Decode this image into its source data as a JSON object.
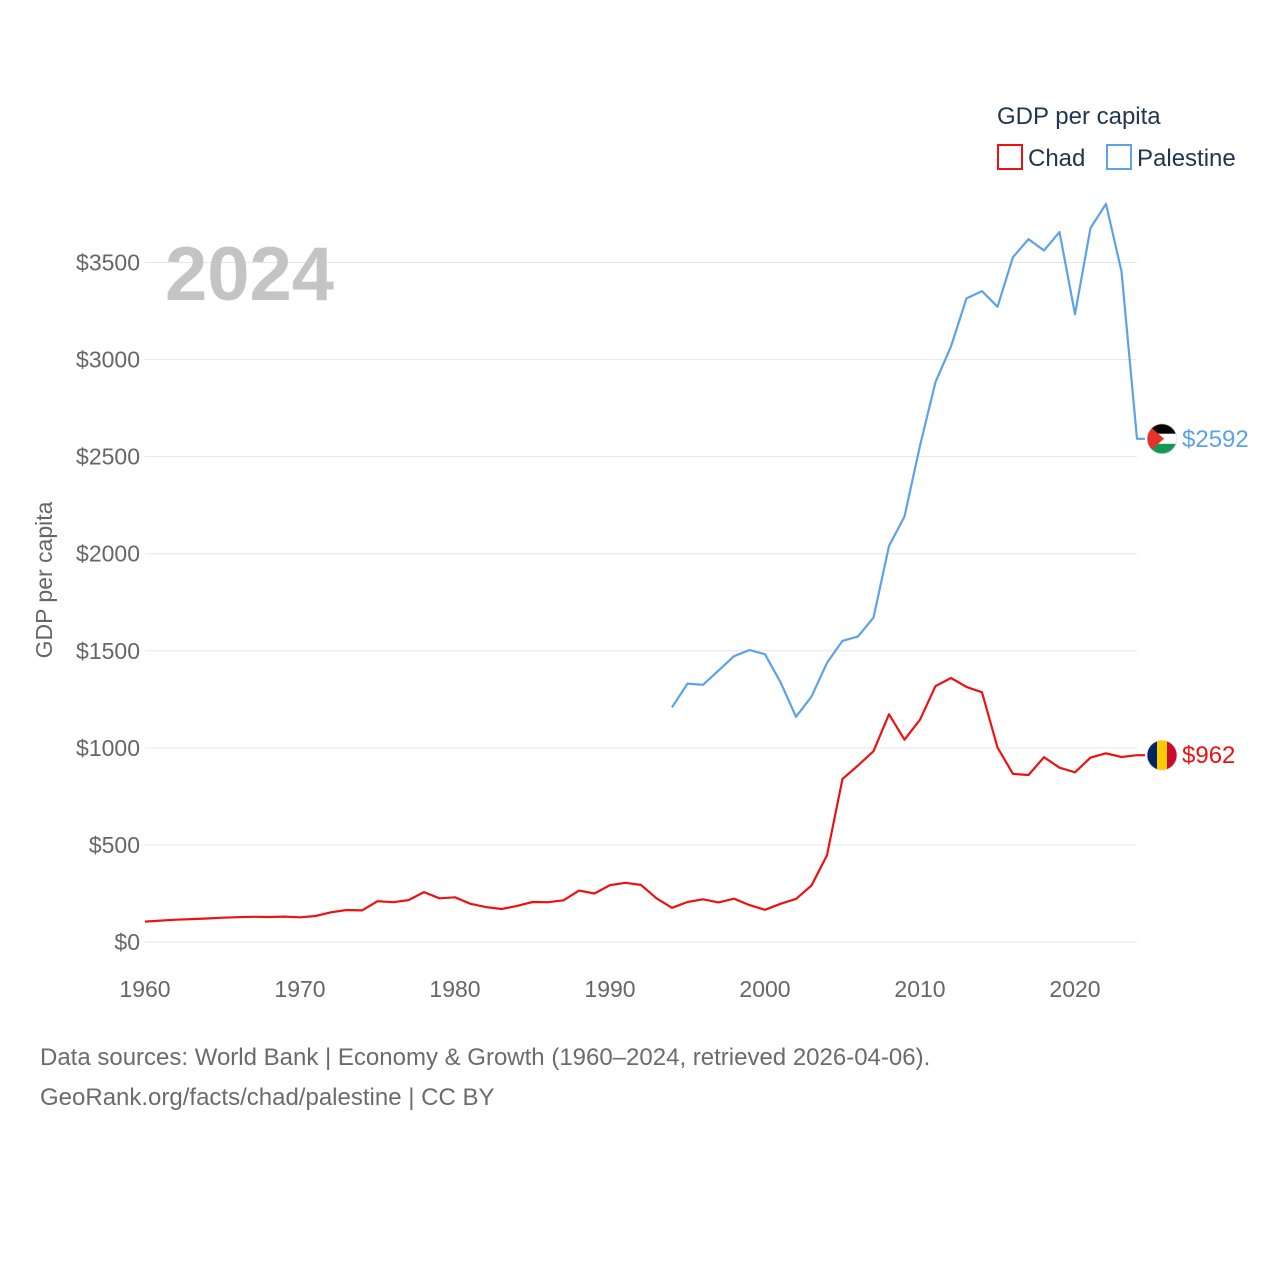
{
  "chart_data": {
    "type": "line",
    "title": "GDP per capita",
    "year_label": "2024",
    "ylabel": "GDP per capita",
    "xlabel": "",
    "xlim": [
      1960,
      2024
    ],
    "ylim": [
      0,
      3750
    ],
    "x_ticks": [
      1960,
      1970,
      1980,
      1990,
      2000,
      2010,
      2020
    ],
    "y_ticks": [
      0,
      500,
      1000,
      1500,
      2000,
      2500,
      3000,
      3500
    ],
    "y_tick_labels": [
      "$0",
      "$500",
      "$1000",
      "$1500",
      "$2000",
      "$2500",
      "$3000",
      "$3500"
    ],
    "grid": true,
    "legend": {
      "title": "GDP per capita",
      "position": "top-right"
    },
    "series": [
      {
        "name": "Chad",
        "color": "#ee1111",
        "end_label": "$962",
        "flag": "chad-flag",
        "points": [
          [
            1960,
            105
          ],
          [
            1961,
            110
          ],
          [
            1962,
            115
          ],
          [
            1963,
            118
          ],
          [
            1964,
            121
          ],
          [
            1965,
            125
          ],
          [
            1966,
            128
          ],
          [
            1967,
            130
          ],
          [
            1968,
            129
          ],
          [
            1969,
            131
          ],
          [
            1970,
            127
          ],
          [
            1971,
            134
          ],
          [
            1972,
            153
          ],
          [
            1973,
            165
          ],
          [
            1974,
            163
          ],
          [
            1975,
            210
          ],
          [
            1976,
            205
          ],
          [
            1977,
            216
          ],
          [
            1978,
            257
          ],
          [
            1979,
            225
          ],
          [
            1980,
            230
          ],
          [
            1981,
            197
          ],
          [
            1982,
            180
          ],
          [
            1983,
            170
          ],
          [
            1984,
            186
          ],
          [
            1985,
            206
          ],
          [
            1986,
            205
          ],
          [
            1987,
            215
          ],
          [
            1988,
            265
          ],
          [
            1989,
            250
          ],
          [
            1990,
            293
          ],
          [
            1991,
            305
          ],
          [
            1992,
            294
          ],
          [
            1993,
            225
          ],
          [
            1994,
            176
          ],
          [
            1995,
            206
          ],
          [
            1996,
            220
          ],
          [
            1997,
            204
          ],
          [
            1998,
            223
          ],
          [
            1999,
            190
          ],
          [
            2000,
            166
          ],
          [
            2001,
            197
          ],
          [
            2002,
            222
          ],
          [
            2003,
            291
          ],
          [
            2004,
            447
          ],
          [
            2005,
            840
          ],
          [
            2006,
            909
          ],
          [
            2007,
            983
          ],
          [
            2008,
            1173
          ],
          [
            2009,
            1042
          ],
          [
            2010,
            1145
          ],
          [
            2011,
            1318
          ],
          [
            2012,
            1360
          ],
          [
            2013,
            1314
          ],
          [
            2014,
            1286
          ],
          [
            2015,
            1002
          ],
          [
            2016,
            866
          ],
          [
            2017,
            860
          ],
          [
            2018,
            952
          ],
          [
            2019,
            898
          ],
          [
            2020,
            874
          ],
          [
            2021,
            950
          ],
          [
            2022,
            972
          ],
          [
            2023,
            953
          ],
          [
            2024,
            962
          ]
        ]
      },
      {
        "name": "Palestine",
        "color": "#5ba3e6",
        "end_label": "$2592",
        "flag": "palestine-flag",
        "points": [
          [
            1994,
            1209
          ],
          [
            1995,
            1331
          ],
          [
            1996,
            1325
          ],
          [
            1997,
            1398
          ],
          [
            1998,
            1472
          ],
          [
            1999,
            1504
          ],
          [
            2000,
            1482
          ],
          [
            2001,
            1338
          ],
          [
            2002,
            1160
          ],
          [
            2003,
            1264
          ],
          [
            2004,
            1438
          ],
          [
            2005,
            1551
          ],
          [
            2006,
            1574
          ],
          [
            2007,
            1671
          ],
          [
            2008,
            2040
          ],
          [
            2009,
            2192
          ],
          [
            2010,
            2557
          ],
          [
            2011,
            2884
          ],
          [
            2012,
            3068
          ],
          [
            2013,
            3315
          ],
          [
            2014,
            3353
          ],
          [
            2015,
            3272
          ],
          [
            2016,
            3528
          ],
          [
            2017,
            3620
          ],
          [
            2018,
            3562
          ],
          [
            2019,
            3657
          ],
          [
            2020,
            3234
          ],
          [
            2021,
            3678
          ],
          [
            2022,
            3802
          ],
          [
            2023,
            3454
          ],
          [
            2024,
            2592
          ]
        ]
      }
    ]
  },
  "footer": {
    "sources": "Data sources: World Bank | Economy & Growth (1960–2024, retrieved 2026-04-06).",
    "attribution": "GeoRank.org/facts/chad/palestine | CC BY"
  }
}
